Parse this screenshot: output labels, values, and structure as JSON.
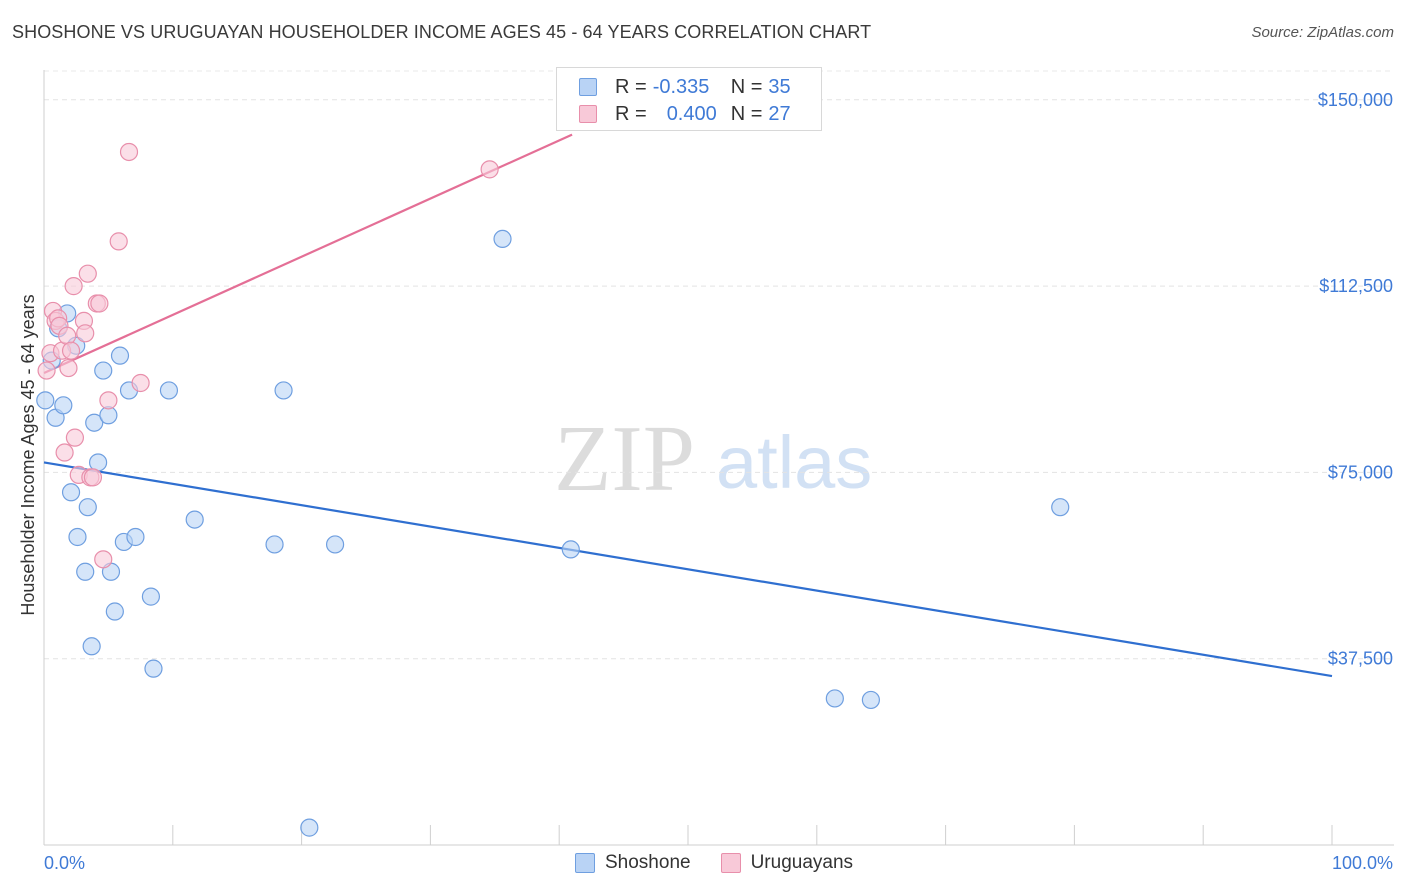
{
  "title": "SHOSHONE VS URUGUAYAN HOUSEHOLDER INCOME AGES 45 - 64 YEARS CORRELATION CHART",
  "source": "Source: ZipAtlas.com",
  "watermark": {
    "zip": "ZIP",
    "atlas": "atlas"
  },
  "legend": {
    "r_label": "R =",
    "n_label": "N =",
    "rows": [
      {
        "name": "Shoshone",
        "r": "-0.335",
        "n": "35",
        "fill": "#b9d3f5",
        "stroke": "#6f9fe0"
      },
      {
        "name": "Uruguayans",
        "r": "0.400",
        "n": "27",
        "fill": "#f8c9d8",
        "stroke": "#e88fab"
      }
    ]
  },
  "chart_data": {
    "type": "scatter",
    "xlabel": "",
    "ylabel": "Householder Income Ages 45 - 64 years",
    "xlim": [
      0,
      100
    ],
    "ylim": [
      0,
      156000
    ],
    "x_tick_labels": [
      "0.0%",
      "100.0%"
    ],
    "y_ticks": [
      37500,
      75000,
      112500,
      150000
    ],
    "y_tick_labels": [
      "$37,500",
      "$75,000",
      "$112,500",
      "$150,000"
    ],
    "series": [
      {
        "name": "Shoshone",
        "color": "#6f9fe0",
        "fill": "#b9d3f5",
        "trend_color": "#2f6fd0",
        "trend": {
          "x": [
            0,
            100
          ],
          "y": [
            77000,
            34000
          ]
        },
        "points": [
          {
            "x": 0.1,
            "y": 89500
          },
          {
            "x": 0.6,
            "y": 97500
          },
          {
            "x": 0.9,
            "y": 86000
          },
          {
            "x": 1.1,
            "y": 104000
          },
          {
            "x": 1.5,
            "y": 88500
          },
          {
            "x": 1.8,
            "y": 107000
          },
          {
            "x": 2.1,
            "y": 71000
          },
          {
            "x": 2.5,
            "y": 100500
          },
          {
            "x": 2.6,
            "y": 62000
          },
          {
            "x": 3.2,
            "y": 55000
          },
          {
            "x": 3.4,
            "y": 68000
          },
          {
            "x": 3.7,
            "y": 40000
          },
          {
            "x": 3.9,
            "y": 85000
          },
          {
            "x": 4.2,
            "y": 77000
          },
          {
            "x": 4.6,
            "y": 95500
          },
          {
            "x": 5.0,
            "y": 86500
          },
          {
            "x": 5.2,
            "y": 55000
          },
          {
            "x": 5.5,
            "y": 47000
          },
          {
            "x": 5.9,
            "y": 98500
          },
          {
            "x": 6.2,
            "y": 61000
          },
          {
            "x": 6.6,
            "y": 91500
          },
          {
            "x": 7.1,
            "y": 62000
          },
          {
            "x": 8.3,
            "y": 50000
          },
          {
            "x": 8.5,
            "y": 35500
          },
          {
            "x": 9.7,
            "y": 91500
          },
          {
            "x": 11.7,
            "y": 65500
          },
          {
            "x": 17.9,
            "y": 60500
          },
          {
            "x": 18.6,
            "y": 91500
          },
          {
            "x": 20.6,
            "y": 3500
          },
          {
            "x": 22.6,
            "y": 60500
          },
          {
            "x": 35.6,
            "y": 122000
          },
          {
            "x": 40.9,
            "y": 59500
          },
          {
            "x": 61.4,
            "y": 29500
          },
          {
            "x": 64.2,
            "y": 29200
          },
          {
            "x": 78.9,
            "y": 68000
          }
        ]
      },
      {
        "name": "Uruguayans",
        "color": "#e88fab",
        "fill": "#f8c9d8",
        "trend_color": "#e46f96",
        "trend": {
          "x": [
            0,
            41
          ],
          "y": [
            95000,
            143000
          ]
        },
        "points": [
          {
            "x": 0.2,
            "y": 95500
          },
          {
            "x": 0.5,
            "y": 99000
          },
          {
            "x": 0.7,
            "y": 107500
          },
          {
            "x": 0.9,
            "y": 105500
          },
          {
            "x": 1.1,
            "y": 106000
          },
          {
            "x": 1.2,
            "y": 104500
          },
          {
            "x": 1.4,
            "y": 99500
          },
          {
            "x": 1.6,
            "y": 79000
          },
          {
            "x": 1.8,
            "y": 102500
          },
          {
            "x": 1.9,
            "y": 96000
          },
          {
            "x": 2.1,
            "y": 99500
          },
          {
            "x": 2.3,
            "y": 112500
          },
          {
            "x": 2.4,
            "y": 82000
          },
          {
            "x": 2.7,
            "y": 74500
          },
          {
            "x": 3.1,
            "y": 105500
          },
          {
            "x": 3.2,
            "y": 103000
          },
          {
            "x": 3.4,
            "y": 115000
          },
          {
            "x": 3.6,
            "y": 74000
          },
          {
            "x": 3.8,
            "y": 74000
          },
          {
            "x": 4.1,
            "y": 109000
          },
          {
            "x": 4.3,
            "y": 109000
          },
          {
            "x": 4.6,
            "y": 57500
          },
          {
            "x": 5.0,
            "y": 89500
          },
          {
            "x": 5.8,
            "y": 121500
          },
          {
            "x": 6.6,
            "y": 139500
          },
          {
            "x": 7.5,
            "y": 93000
          },
          {
            "x": 34.6,
            "y": 136000
          }
        ]
      }
    ]
  }
}
